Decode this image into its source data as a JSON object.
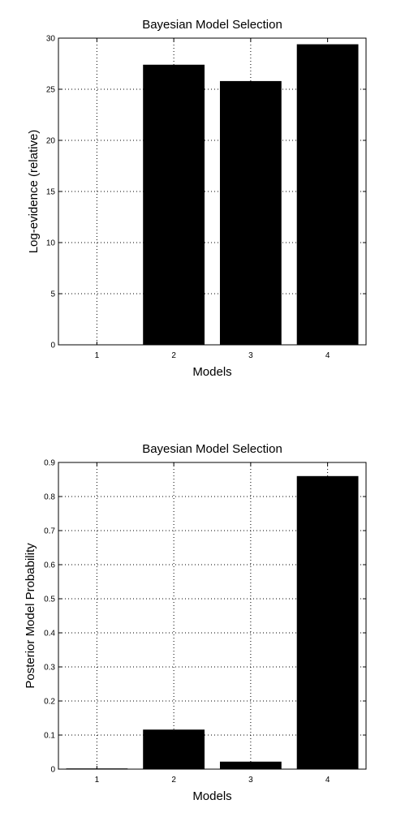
{
  "figure": {
    "background": "#ffffff",
    "bar_color": "#000000",
    "grid_color": "#000000"
  },
  "chart_data": [
    {
      "type": "bar",
      "title": "Bayesian Model Selection",
      "xlabel": "Models",
      "ylabel": "Log-evidence (relative)",
      "categories": [
        "1",
        "2",
        "3",
        "4"
      ],
      "values": [
        0,
        27.4,
        25.8,
        29.4
      ],
      "ylim": [
        0,
        30
      ],
      "yticks": [
        0,
        5,
        10,
        15,
        20,
        25,
        30
      ],
      "grid": true
    },
    {
      "type": "bar",
      "title": "Bayesian Model Selection",
      "xlabel": "Models",
      "ylabel": "Posterior Model Probability",
      "categories": [
        "1",
        "2",
        "3",
        "4"
      ],
      "values": [
        0.002,
        0.116,
        0.022,
        0.86
      ],
      "ylim": [
        0,
        0.9
      ],
      "yticks": [
        0,
        0.1,
        0.2,
        0.3,
        0.4,
        0.5,
        0.6,
        0.7,
        0.8,
        0.9
      ],
      "grid": true
    }
  ]
}
